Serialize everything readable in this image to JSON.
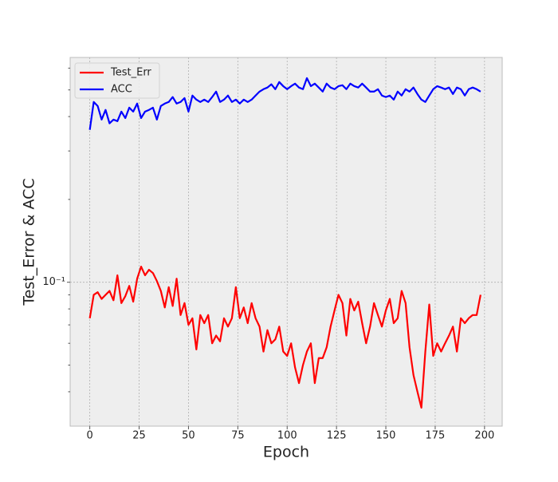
{
  "chart_data": {
    "type": "line",
    "xlabel": "Epoch",
    "ylabel": "Test_Error & ACC",
    "x": [
      0,
      2,
      4,
      6,
      8,
      10,
      12,
      14,
      16,
      18,
      20,
      22,
      24,
      26,
      28,
      30,
      32,
      34,
      36,
      38,
      40,
      42,
      44,
      46,
      48,
      50,
      52,
      54,
      56,
      58,
      60,
      62,
      64,
      66,
      68,
      70,
      72,
      74,
      76,
      78,
      80,
      82,
      84,
      86,
      88,
      90,
      92,
      94,
      96,
      98,
      100,
      102,
      104,
      106,
      108,
      110,
      112,
      114,
      116,
      118,
      120,
      122,
      124,
      126,
      128,
      130,
      132,
      134,
      136,
      138,
      140,
      142,
      144,
      146,
      148,
      150,
      152,
      154,
      156,
      158,
      160,
      162,
      164,
      166,
      168,
      170,
      172,
      174,
      176,
      178,
      180,
      182,
      184,
      186,
      188,
      190,
      192,
      194,
      196,
      198
    ],
    "series": [
      {
        "name": "Test_Err",
        "color": "#ff0000",
        "values": [
          0.074,
          0.09,
          0.092,
          0.087,
          0.09,
          0.093,
          0.086,
          0.106,
          0.084,
          0.089,
          0.097,
          0.085,
          0.103,
          0.114,
          0.106,
          0.111,
          0.108,
          0.101,
          0.093,
          0.081,
          0.096,
          0.082,
          0.103,
          0.076,
          0.084,
          0.07,
          0.074,
          0.057,
          0.076,
          0.071,
          0.076,
          0.06,
          0.064,
          0.061,
          0.074,
          0.069,
          0.074,
          0.096,
          0.074,
          0.081,
          0.071,
          0.084,
          0.074,
          0.069,
          0.056,
          0.067,
          0.06,
          0.062,
          0.069,
          0.056,
          0.054,
          0.06,
          0.049,
          0.043,
          0.05,
          0.056,
          0.06,
          0.043,
          0.053,
          0.053,
          0.058,
          0.069,
          0.079,
          0.09,
          0.084,
          0.064,
          0.087,
          0.079,
          0.085,
          0.071,
          0.06,
          0.069,
          0.084,
          0.076,
          0.069,
          0.079,
          0.087,
          0.071,
          0.074,
          0.093,
          0.084,
          0.058,
          0.046,
          0.04,
          0.035,
          0.056,
          0.083,
          0.054,
          0.06,
          0.056,
          0.06,
          0.064,
          0.069,
          0.056,
          0.074,
          0.071,
          0.074,
          0.076,
          0.076,
          0.09
        ]
      },
      {
        "name": "ACC",
        "color": "#0000ff",
        "values": [
          0.358,
          0.452,
          0.437,
          0.39,
          0.423,
          0.378,
          0.39,
          0.385,
          0.417,
          0.395,
          0.431,
          0.417,
          0.446,
          0.395,
          0.417,
          0.423,
          0.431,
          0.39,
          0.437,
          0.446,
          0.452,
          0.471,
          0.446,
          0.452,
          0.467,
          0.417,
          0.477,
          0.461,
          0.452,
          0.461,
          0.452,
          0.471,
          0.493,
          0.452,
          0.461,
          0.477,
          0.452,
          0.461,
          0.446,
          0.461,
          0.452,
          0.461,
          0.477,
          0.493,
          0.503,
          0.51,
          0.524,
          0.503,
          0.534,
          0.516,
          0.503,
          0.516,
          0.527,
          0.51,
          0.503,
          0.552,
          0.516,
          0.527,
          0.51,
          0.493,
          0.527,
          0.51,
          0.503,
          0.516,
          0.52,
          0.503,
          0.527,
          0.516,
          0.51,
          0.527,
          0.51,
          0.493,
          0.493,
          0.503,
          0.477,
          0.471,
          0.477,
          0.461,
          0.493,
          0.477,
          0.503,
          0.493,
          0.51,
          0.483,
          0.461,
          0.452,
          0.477,
          0.503,
          0.516,
          0.51,
          0.503,
          0.51,
          0.483,
          0.51,
          0.503,
          0.477,
          0.503,
          0.51,
          0.503,
          0.493
        ]
      }
    ],
    "xlim": [
      -9.95,
      208.95
    ],
    "xticks": [
      0,
      25,
      50,
      75,
      100,
      125,
      150,
      175,
      200
    ],
    "ylim": [
      0.03,
      0.656
    ],
    "yscale": "log",
    "yticks": [
      {
        "value": 0.1,
        "label": "10⁻¹"
      }
    ],
    "yminorticks": [
      0.04,
      0.05,
      0.06,
      0.07,
      0.08,
      0.09,
      0.2,
      0.3,
      0.4,
      0.5,
      0.6
    ],
    "grid": true,
    "legend": "upper left"
  }
}
